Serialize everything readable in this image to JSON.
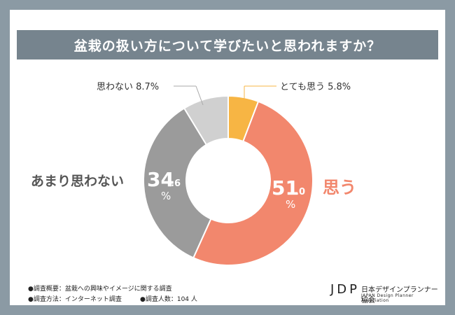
{
  "chart_data": {
    "type": "pie",
    "donut": true,
    "title": "盆栽の扱い方について学びたいと思われますか？",
    "slices": [
      {
        "label": "とても思う",
        "value": 5.8,
        "color": "#f7b544",
        "display": "とても思う 5.8%"
      },
      {
        "label": "思う",
        "value": 51.0,
        "color": "#f2876d",
        "display": "思う",
        "big_int": "51",
        "big_dec": ".0",
        "pct": "%"
      },
      {
        "label": "あまり思わない",
        "value": 34.6,
        "color": "#9b9b9b",
        "display": "あまり思わない",
        "big_int": "34",
        "big_dec": ".6",
        "pct": "%"
      },
      {
        "label": "思わない",
        "value": 8.7,
        "color": "#d0d0d0",
        "display": "思わない 8.7%"
      }
    ]
  },
  "footer": {
    "line1": "●調査概要：盆栽への興味やイメージに関する調査",
    "line2_method": "●調査方法：インターネット調査",
    "line2_count": "●調査人数：104 人"
  },
  "logo": {
    "mark": "JDP",
    "name": "日本デザインプランナー協会",
    "sub": "JAPAN Design Planner Association"
  }
}
